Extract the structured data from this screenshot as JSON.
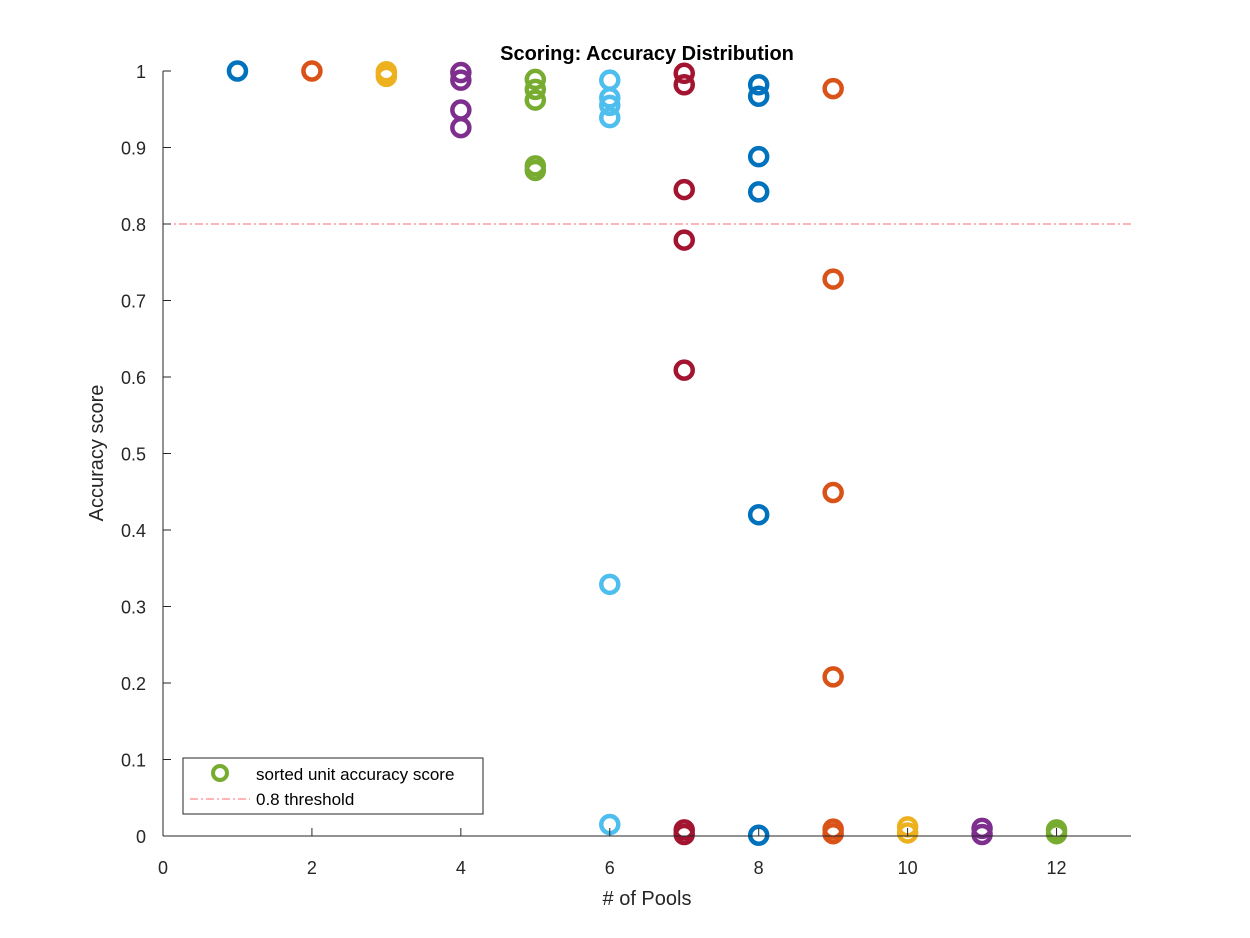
{
  "chart_data": {
    "type": "scatter",
    "title": "Scoring: Accuracy Distribution",
    "xlabel": "# of Pools",
    "ylabel": "Accuracy score",
    "xlim": [
      0,
      13
    ],
    "ylim": [
      0,
      1
    ],
    "xticks": [
      0,
      2,
      4,
      6,
      8,
      10,
      12
    ],
    "yticks": [
      0,
      0.1,
      0.2,
      0.3,
      0.4,
      0.5,
      0.6,
      0.7,
      0.8,
      0.9,
      1
    ],
    "ytick_labels": [
      "0",
      "0.1",
      "0.2",
      "0.3",
      "0.4",
      "0.5",
      "0.6",
      "0.7",
      "0.8",
      "0.9",
      "1"
    ],
    "grid": false,
    "legend_position": "bottom-left",
    "series": [
      {
        "name": "sorted unit accuracy score",
        "points": [
          {
            "x": 1,
            "y": 1.0,
            "color": "#0072BD"
          },
          {
            "x": 2,
            "y": 1.0,
            "color": "#D95319"
          },
          {
            "x": 3,
            "y": 0.999,
            "color": "#EDB120"
          },
          {
            "x": 3,
            "y": 0.997,
            "color": "#EDB120"
          },
          {
            "x": 3,
            "y": 0.993,
            "color": "#EDB120"
          },
          {
            "x": 4,
            "y": 0.998,
            "color": "#7E2F8E"
          },
          {
            "x": 4,
            "y": 0.988,
            "color": "#7E2F8E"
          },
          {
            "x": 4,
            "y": 0.949,
            "color": "#7E2F8E"
          },
          {
            "x": 4,
            "y": 0.926,
            "color": "#7E2F8E"
          },
          {
            "x": 5,
            "y": 0.989,
            "color": "#77AC30"
          },
          {
            "x": 5,
            "y": 0.976,
            "color": "#77AC30"
          },
          {
            "x": 5,
            "y": 0.962,
            "color": "#77AC30"
          },
          {
            "x": 5,
            "y": 0.876,
            "color": "#77AC30"
          },
          {
            "x": 5,
            "y": 0.87,
            "color": "#77AC30"
          },
          {
            "x": 6,
            "y": 0.988,
            "color": "#4DBEEE"
          },
          {
            "x": 6,
            "y": 0.965,
            "color": "#4DBEEE"
          },
          {
            "x": 6,
            "y": 0.955,
            "color": "#4DBEEE"
          },
          {
            "x": 6,
            "y": 0.939,
            "color": "#4DBEEE"
          },
          {
            "x": 6,
            "y": 0.329,
            "color": "#4DBEEE"
          },
          {
            "x": 6,
            "y": 0.015,
            "color": "#4DBEEE"
          },
          {
            "x": 7,
            "y": 0.997,
            "color": "#A2142F"
          },
          {
            "x": 7,
            "y": 0.982,
            "color": "#A2142F"
          },
          {
            "x": 7,
            "y": 0.845,
            "color": "#A2142F"
          },
          {
            "x": 7,
            "y": 0.779,
            "color": "#A2142F"
          },
          {
            "x": 7,
            "y": 0.609,
            "color": "#A2142F"
          },
          {
            "x": 7,
            "y": 0.008,
            "color": "#A2142F"
          },
          {
            "x": 7,
            "y": 0.002,
            "color": "#A2142F"
          },
          {
            "x": 8,
            "y": 0.982,
            "color": "#0072BD"
          },
          {
            "x": 8,
            "y": 0.967,
            "color": "#0072BD"
          },
          {
            "x": 8,
            "y": 0.888,
            "color": "#0072BD"
          },
          {
            "x": 8,
            "y": 0.842,
            "color": "#0072BD"
          },
          {
            "x": 8,
            "y": 0.42,
            "color": "#0072BD"
          },
          {
            "x": 8,
            "y": 0.001,
            "color": "#0072BD"
          },
          {
            "x": 9,
            "y": 0.977,
            "color": "#D95319"
          },
          {
            "x": 9,
            "y": 0.728,
            "color": "#D95319"
          },
          {
            "x": 9,
            "y": 0.449,
            "color": "#D95319"
          },
          {
            "x": 9,
            "y": 0.208,
            "color": "#D95319"
          },
          {
            "x": 9,
            "y": 0.009,
            "color": "#D95319"
          },
          {
            "x": 9,
            "y": 0.003,
            "color": "#D95319"
          },
          {
            "x": 10,
            "y": 0.012,
            "color": "#EDB120"
          },
          {
            "x": 10,
            "y": 0.004,
            "color": "#EDB120"
          },
          {
            "x": 11,
            "y": 0.01,
            "color": "#7E2F8E"
          },
          {
            "x": 11,
            "y": 0.002,
            "color": "#7E2F8E"
          },
          {
            "x": 12,
            "y": 0.008,
            "color": "#77AC30"
          },
          {
            "x": 12,
            "y": 0.003,
            "color": "#77AC30"
          }
        ]
      },
      {
        "name": "0.8 threshold",
        "type": "hline",
        "y": 0.8,
        "color": "#FF6B6B"
      }
    ],
    "legend": [
      {
        "label": "sorted unit accuracy score",
        "marker": "circle",
        "color": "#77AC30"
      },
      {
        "label": "0.8 threshold",
        "marker": "dashdot-line",
        "color": "#FF6B6B"
      }
    ]
  }
}
